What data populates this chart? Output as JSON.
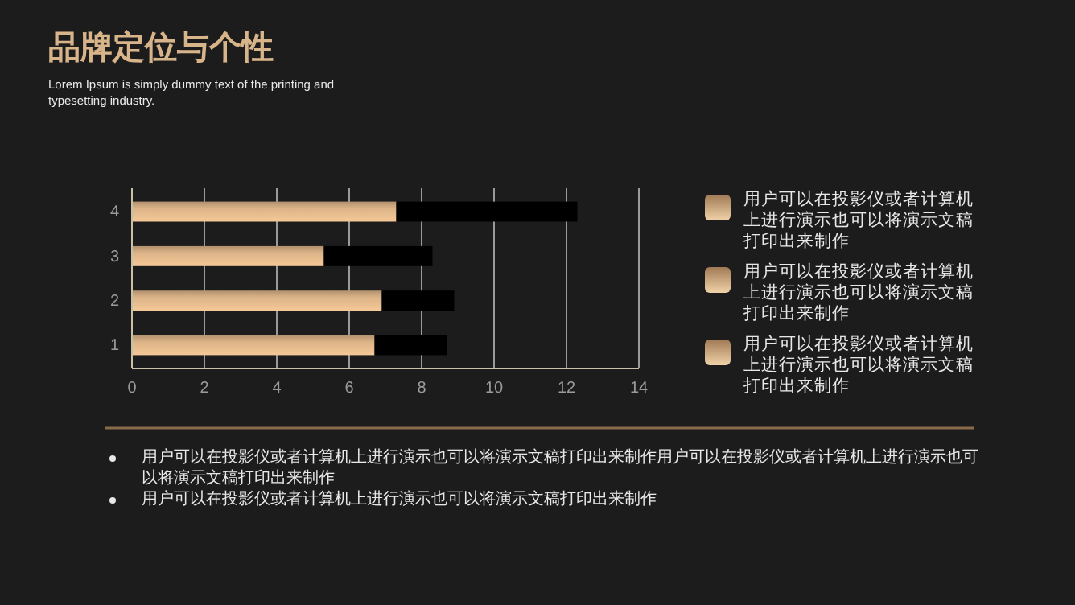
{
  "chart_data": {
    "type": "bar",
    "orientation": "horizontal",
    "stacked": true,
    "title": "品牌定位与个性",
    "subtitle": "Lorem Ipsum is simply dummy text of the printing and typesetting industry.",
    "categories": [
      "4",
      "3",
      "2",
      "1"
    ],
    "series": [
      {
        "color": "#dcb488",
        "values": [
          7.3,
          5.3,
          6.9,
          6.7
        ]
      },
      {
        "color": "#000000",
        "values": [
          5.0,
          3.0,
          2.0,
          2.0
        ]
      }
    ],
    "xlim": [
      0,
      14
    ],
    "xticks": [
      0,
      2,
      4,
      6,
      8,
      10,
      12,
      14
    ],
    "grid": "x",
    "annotations": [
      "用户可以在投影仪或者计算机上进行演示也可以将演示文稿打印出来制作",
      "用户可以在投影仪或者计算机上进行演示也可以将演示文稿打印出来制作",
      "用户可以在投影仪或者计算机上进行演示也可以将演示文稿打印出来制作",
      "用户可以在投影仪或者计算机上进行演示也可以将演示文稿打印出来制作用户可以在投影仪或者计算机上进行演示也可以将演示文稿打印出来制作",
      "用户可以在投影仪或者计算机上进行演示也可以将演示文稿打印出来制作"
    ]
  }
}
